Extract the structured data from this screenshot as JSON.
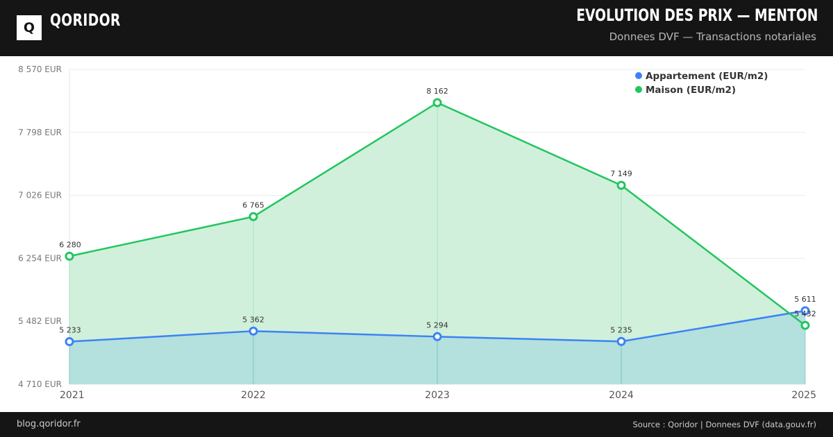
{
  "header": {
    "logo_letter": "Q",
    "brand": "QORIDOR",
    "title": "EVOLUTION DES PRIX — MENTON",
    "subtitle": "Donnees DVF — Transactions notariales"
  },
  "footer": {
    "left": "blog.qoridor.fr",
    "right": "Source : Qoridor | Donnees DVF (data.gouv.fr)"
  },
  "chart_data": {
    "type": "area",
    "categories": [
      "2021",
      "2022",
      "2023",
      "2024",
      "2025"
    ],
    "series": [
      {
        "name": "Appartement (EUR/m2)",
        "values": [
          5233,
          5362,
          5294,
          5235,
          5611
        ],
        "labels": [
          "5 233",
          "5 362",
          "5 294",
          "5 235",
          "5 611"
        ],
        "color": "#3b82f6",
        "fill": "#b1dedd"
      },
      {
        "name": "Maison (EUR/m2)",
        "values": [
          6280,
          6765,
          8162,
          7149,
          5432
        ],
        "labels": [
          "6 280",
          "6 765",
          "8 162",
          "7 149",
          "5 432"
        ],
        "color": "#22c55e",
        "fill": "#d0f0db"
      }
    ],
    "yticks": [
      "8 570 EUR",
      "7 798 EUR",
      "7 026 EUR",
      "6 254 EUR",
      "5 482 EUR",
      "4 710 EUR"
    ],
    "ytick_values": [
      8570,
      7798,
      7026,
      6254,
      5482,
      4710
    ],
    "ylim": [
      4710,
      8570
    ],
    "grid": true,
    "legend_position": "top-right"
  }
}
